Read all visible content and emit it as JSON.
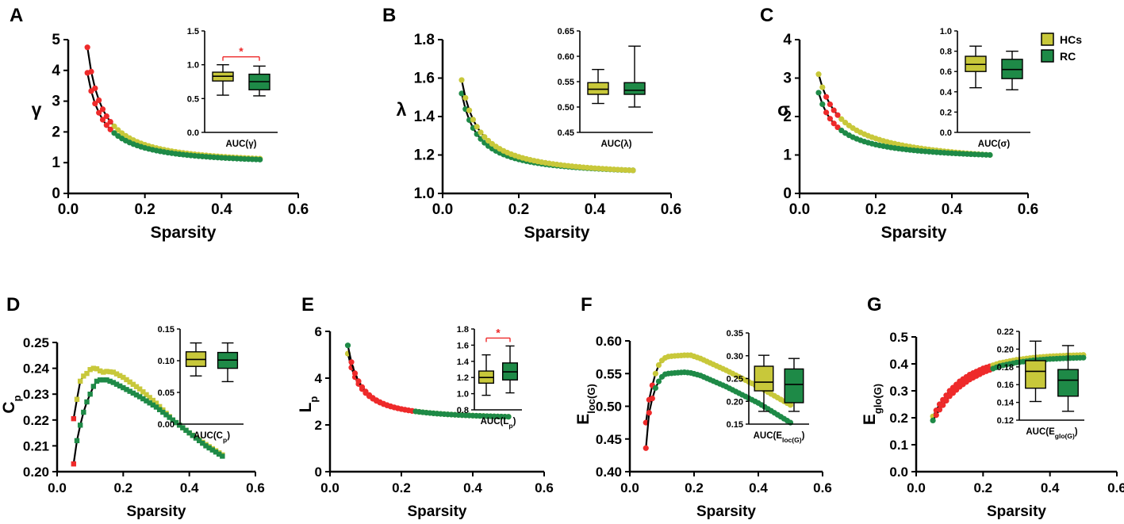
{
  "colors": {
    "hc": "#c8c83a",
    "rc": "#1e8a47",
    "sig": "#ee2a2a",
    "axis": "#000000",
    "line": "#000000"
  },
  "legend": {
    "hc_label": "HCs",
    "rc_label": "RC"
  },
  "chart_data": [
    {
      "id": "A",
      "panel_label": "A",
      "type": "scatter",
      "title": "",
      "xlabel": "Sparsity",
      "ylabel": "γ",
      "xlim": [
        0,
        0.6
      ],
      "ylim": [
        0,
        5
      ],
      "xticks": [
        0,
        0.2,
        0.4,
        0.6
      ],
      "xtick_labels": [
        "0.0",
        "0.2",
        "0.4",
        "0.6"
      ],
      "yticks": [
        0,
        1,
        2,
        3,
        4,
        5
      ],
      "ytick_labels": [
        "0",
        "1",
        "2",
        "3",
        "4",
        "5"
      ],
      "x": {
        "start": 0.05,
        "end": 0.5,
        "step": 0.01
      },
      "series": [
        {
          "name": "HCs",
          "start": 4.75,
          "end": 1.13,
          "shape": 1.27,
          "marker": "circle",
          "sig_range": [
            0.05,
            0.11
          ]
        },
        {
          "name": "RC",
          "start": 3.92,
          "end": 1.1,
          "shape": 1.2,
          "marker": "circle",
          "sig_range": [
            0.05,
            0.11
          ]
        }
      ],
      "inset": {
        "label": "AUC(γ)",
        "ylim": [
          0.0,
          1.5
        ],
        "yticks": [
          0.0,
          0.5,
          1.0,
          1.5
        ],
        "ytick_labels": [
          "0.0",
          "0.5",
          "1.0",
          "1.5"
        ],
        "boxes": [
          {
            "group": "HCs",
            "min": 0.55,
            "q1": 0.76,
            "median": 0.83,
            "q3": 0.89,
            "max": 1.0
          },
          {
            "group": "RC",
            "min": 0.54,
            "q1": 0.63,
            "median": 0.75,
            "q3": 0.86,
            "max": 0.98
          }
        ],
        "significance": "*"
      }
    },
    {
      "id": "B",
      "panel_label": "B",
      "type": "scatter",
      "title": "",
      "xlabel": "Sparsity",
      "ylabel": "λ",
      "xlim": [
        0,
        0.6
      ],
      "ylim": [
        1.0,
        1.8
      ],
      "xticks": [
        0,
        0.2,
        0.4,
        0.6
      ],
      "xtick_labels": [
        "0.0",
        "0.2",
        "0.4",
        "0.6"
      ],
      "yticks": [
        1.0,
        1.2,
        1.4,
        1.6,
        1.8
      ],
      "ytick_labels": [
        "1.0",
        "1.2",
        "1.4",
        "1.6",
        "1.8"
      ],
      "x": {
        "start": 0.05,
        "end": 0.5,
        "step": 0.01
      },
      "series": [
        {
          "name": "RC",
          "start": 1.52,
          "end": 1.12,
          "shape": 1.15,
          "marker": "circle",
          "sig_range": null
        },
        {
          "name": "HCs",
          "start": 1.59,
          "end": 1.12,
          "shape": 1.1,
          "marker": "circle",
          "sig_range": null
        }
      ],
      "inset": {
        "label": "AUC(λ)",
        "ylim": [
          0.45,
          0.65
        ],
        "yticks": [
          0.45,
          0.5,
          0.55,
          0.6,
          0.65
        ],
        "ytick_labels": [
          "0.45",
          "0.50",
          "0.55",
          "0.60",
          "0.65"
        ],
        "boxes": [
          {
            "group": "HCs",
            "min": 0.507,
            "q1": 0.525,
            "median": 0.535,
            "q3": 0.548,
            "max": 0.574
          },
          {
            "group": "RC",
            "min": 0.5,
            "q1": 0.525,
            "median": 0.533,
            "q3": 0.548,
            "max": 0.62
          }
        ],
        "significance": null
      }
    },
    {
      "id": "C",
      "panel_label": "C",
      "type": "scatter",
      "title": "",
      "xlabel": "Sparsity",
      "ylabel": "σ",
      "xlim": [
        0,
        0.6
      ],
      "ylim": [
        0,
        4
      ],
      "xticks": [
        0,
        0.2,
        0.4,
        0.6
      ],
      "xtick_labels": [
        "0.0",
        "0.2",
        "0.4",
        "0.6"
      ],
      "yticks": [
        0,
        1,
        2,
        3,
        4
      ],
      "ytick_labels": [
        "0",
        "1",
        "2",
        "3",
        "4"
      ],
      "x": {
        "start": 0.05,
        "end": 0.5,
        "step": 0.01
      },
      "series": [
        {
          "name": "HCs",
          "start": 3.1,
          "end": 1.0,
          "shape": 0.8,
          "marker": "circle",
          "sig_range": [
            0.07,
            0.1
          ]
        },
        {
          "name": "RC",
          "start": 2.62,
          "end": 1.0,
          "shape": 1.0,
          "marker": "circle",
          "sig_range": [
            0.07,
            0.1
          ]
        }
      ],
      "inset": {
        "label": "AUC(σ)",
        "ylim": [
          0.0,
          1.0
        ],
        "yticks": [
          0.0,
          0.2,
          0.4,
          0.6,
          0.8,
          1.0
        ],
        "ytick_labels": [
          "0.0",
          "0.2",
          "0.4",
          "0.6",
          "0.8",
          "1.0"
        ],
        "boxes": [
          {
            "group": "HCs",
            "min": 0.44,
            "q1": 0.6,
            "median": 0.67,
            "q3": 0.75,
            "max": 0.85
          },
          {
            "group": "RC",
            "min": 0.42,
            "q1": 0.53,
            "median": 0.62,
            "q3": 0.72,
            "max": 0.8
          }
        ],
        "significance": null
      }
    },
    {
      "id": "D",
      "panel_label": "D",
      "type": "scatter",
      "title": "",
      "xlabel": "Sparsity",
      "ylabel": "C",
      "ylabel_sub": "p",
      "xlim": [
        0,
        0.6
      ],
      "ylim": [
        0.2,
        0.25
      ],
      "xticks": [
        0,
        0.2,
        0.4,
        0.6
      ],
      "xtick_labels": [
        "0.0",
        "0.2",
        "0.4",
        "0.6"
      ],
      "yticks": [
        0.2,
        0.21,
        0.22,
        0.23,
        0.24,
        0.25
      ],
      "ytick_labels": [
        "0.20",
        "0.21",
        "0.22",
        "0.23",
        "0.24",
        "0.25"
      ],
      "x": {
        "start": 0.05,
        "end": 0.5,
        "step": 0.01
      },
      "series": [
        {
          "name": "HCs",
          "marker": "square",
          "sig_range": [
            0.05,
            0.05
          ],
          "key_x": [
            0.05,
            0.06,
            0.07,
            0.08,
            0.09,
            0.1,
            0.11,
            0.12,
            0.13,
            0.14,
            0.15,
            0.17,
            0.2,
            0.25,
            0.3,
            0.35,
            0.4,
            0.45,
            0.5
          ],
          "key_y": [
            0.2205,
            0.228,
            0.235,
            0.237,
            0.238,
            0.2395,
            0.24,
            0.2398,
            0.239,
            0.2385,
            0.2388,
            0.2385,
            0.2365,
            0.232,
            0.2265,
            0.22,
            0.215,
            0.2105,
            0.2065
          ]
        },
        {
          "name": "RC",
          "marker": "square",
          "sig_range": [
            0.05,
            0.05
          ],
          "key_x": [
            0.05,
            0.06,
            0.07,
            0.08,
            0.09,
            0.1,
            0.11,
            0.12,
            0.13,
            0.15,
            0.17,
            0.2,
            0.25,
            0.3,
            0.35,
            0.4,
            0.45,
            0.5
          ],
          "key_y": [
            0.203,
            0.212,
            0.218,
            0.223,
            0.227,
            0.23,
            0.233,
            0.235,
            0.2355,
            0.2355,
            0.2345,
            0.2325,
            0.229,
            0.225,
            0.22,
            0.215,
            0.21,
            0.206
          ]
        }
      ],
      "inset": {
        "label": "AUC(C",
        "label_sub": "p",
        "label_end": ")",
        "ylim": [
          0.0,
          0.15
        ],
        "yticks": [
          0.0,
          0.05,
          0.1,
          0.15
        ],
        "ytick_labels": [
          "0.00",
          "0.05",
          "0.10",
          "0.15"
        ],
        "boxes": [
          {
            "group": "HCs",
            "min": 0.076,
            "q1": 0.091,
            "median": 0.102,
            "q3": 0.114,
            "max": 0.128
          },
          {
            "group": "RC",
            "min": 0.067,
            "q1": 0.088,
            "median": 0.101,
            "q3": 0.113,
            "max": 0.128
          }
        ],
        "significance": null
      }
    },
    {
      "id": "E",
      "panel_label": "E",
      "type": "scatter",
      "title": "",
      "xlabel": "Sparsity",
      "ylabel": "L",
      "ylabel_sub": "p",
      "xlim": [
        0,
        0.6
      ],
      "ylim": [
        0,
        6
      ],
      "xticks": [
        0,
        0.2,
        0.4,
        0.6
      ],
      "xtick_labels": [
        "0.0",
        "0.2",
        "0.4",
        "0.6"
      ],
      "yticks": [
        0,
        2,
        4,
        6
      ],
      "ytick_labels": [
        "0",
        "2",
        "4",
        "6"
      ],
      "x": {
        "start": 0.05,
        "end": 0.5,
        "step": 0.01
      },
      "series": [
        {
          "name": "HCs",
          "start": 5.05,
          "end": 2.35,
          "shape": 1.3,
          "marker": "circle",
          "sig_range": [
            0.06,
            0.23
          ]
        },
        {
          "name": "RC",
          "start": 5.4,
          "end": 2.35,
          "shape": 1.4,
          "marker": "circle",
          "sig_range": [
            0.06,
            0.23
          ]
        }
      ],
      "inset": {
        "label": "AUC(L",
        "label_sub": "p",
        "label_end": ")",
        "ylim": [
          0.8,
          1.8
        ],
        "yticks": [
          0.8,
          1.0,
          1.2,
          1.4,
          1.6,
          1.8
        ],
        "ytick_labels": [
          "0.8",
          "1.0",
          "1.2",
          "1.4",
          "1.6",
          "1.8"
        ],
        "boxes": [
          {
            "group": "HCs",
            "min": 0.98,
            "q1": 1.13,
            "median": 1.2,
            "q3": 1.28,
            "max": 1.48
          },
          {
            "group": "RC",
            "min": 1.01,
            "q1": 1.17,
            "median": 1.27,
            "q3": 1.38,
            "max": 1.59
          }
        ],
        "significance": "*"
      }
    },
    {
      "id": "F",
      "panel_label": "F",
      "type": "scatter",
      "title": "",
      "xlabel": "Sparsity",
      "ylabel": "E",
      "ylabel_sub": "loc(G)",
      "xlim": [
        0,
        0.6
      ],
      "ylim": [
        0.4,
        0.6
      ],
      "xticks": [
        0,
        0.2,
        0.4,
        0.6
      ],
      "xtick_labels": [
        "0.0",
        "0.2",
        "0.4",
        "0.6"
      ],
      "yticks": [
        0.4,
        0.45,
        0.5,
        0.55,
        0.6
      ],
      "ytick_labels": [
        "0.40",
        "0.45",
        "0.50",
        "0.55",
        "0.60"
      ],
      "x": {
        "start": 0.05,
        "end": 0.5,
        "step": 0.01
      },
      "series": [
        {
          "name": "HCs",
          "marker": "circle",
          "sig_range": [
            0.05,
            0.07
          ],
          "key_x": [
            0.05,
            0.06,
            0.07,
            0.08,
            0.09,
            0.1,
            0.11,
            0.12,
            0.14,
            0.17,
            0.19,
            0.22,
            0.3,
            0.4,
            0.5
          ],
          "key_y": [
            0.475,
            0.51,
            0.532,
            0.55,
            0.563,
            0.57,
            0.574,
            0.576,
            0.577,
            0.578,
            0.578,
            0.573,
            0.555,
            0.53,
            0.502
          ]
        },
        {
          "name": "RC",
          "marker": "circle",
          "sig_range": [
            0.05,
            0.07
          ],
          "key_x": [
            0.05,
            0.06,
            0.07,
            0.08,
            0.09,
            0.1,
            0.11,
            0.12,
            0.14,
            0.17,
            0.19,
            0.22,
            0.3,
            0.4,
            0.5
          ],
          "key_y": [
            0.436,
            0.49,
            0.512,
            0.528,
            0.538,
            0.545,
            0.549,
            0.55,
            0.551,
            0.552,
            0.551,
            0.547,
            0.53,
            0.505,
            0.475
          ]
        }
      ],
      "inset": {
        "label": "AUC(E",
        "label_sub": "loc(G)",
        "label_end": ")",
        "ylim": [
          0.15,
          0.35
        ],
        "yticks": [
          0.15,
          0.2,
          0.25,
          0.3,
          0.35
        ],
        "ytick_labels": [
          "0.15",
          "0.20",
          "0.25",
          "0.30",
          "0.35"
        ],
        "boxes": [
          {
            "group": "HCs",
            "min": 0.178,
            "q1": 0.223,
            "median": 0.242,
            "q3": 0.277,
            "max": 0.301
          },
          {
            "group": "RC",
            "min": 0.178,
            "q1": 0.197,
            "median": 0.237,
            "q3": 0.271,
            "max": 0.294
          }
        ],
        "significance": null
      }
    },
    {
      "id": "G",
      "panel_label": "G",
      "type": "scatter",
      "title": "",
      "xlabel": "Sparsity",
      "ylabel": "E",
      "ylabel_sub": "glo(G)",
      "xlim": [
        0,
        0.6
      ],
      "ylim": [
        0,
        0.5
      ],
      "xticks": [
        0,
        0.2,
        0.4,
        0.6
      ],
      "xtick_labels": [
        "0.0",
        "0.2",
        "0.4",
        "0.6"
      ],
      "yticks": [
        0,
        0.1,
        0.2,
        0.3,
        0.4,
        0.5
      ],
      "ytick_labels": [
        "0.0",
        "0.1",
        "0.2",
        "0.3",
        "0.4",
        "0.5"
      ],
      "x": {
        "start": 0.05,
        "end": 0.5,
        "step": 0.01
      },
      "series": [
        {
          "name": "HCs",
          "marker": "circle",
          "sig_range": [
            0.06,
            0.22
          ],
          "key_x": [
            0.05,
            0.07,
            0.1,
            0.13,
            0.16,
            0.2,
            0.25,
            0.3,
            0.35,
            0.4,
            0.45,
            0.5
          ],
          "key_y": [
            0.205,
            0.25,
            0.3,
            0.335,
            0.36,
            0.383,
            0.403,
            0.415,
            0.423,
            0.428,
            0.431,
            0.433
          ]
        },
        {
          "name": "RC",
          "marker": "circle",
          "sig_range": [
            0.06,
            0.22
          ],
          "key_x": [
            0.05,
            0.07,
            0.1,
            0.13,
            0.16,
            0.2,
            0.25,
            0.3,
            0.35,
            0.4,
            0.45,
            0.5
          ],
          "key_y": [
            0.19,
            0.23,
            0.28,
            0.315,
            0.342,
            0.368,
            0.392,
            0.405,
            0.413,
            0.418,
            0.421,
            0.423
          ]
        }
      ],
      "inset": {
        "label": "AUC(E",
        "label_sub": "glo(G)",
        "label_end": ")",
        "ylim": [
          0.12,
          0.22
        ],
        "yticks": [
          0.12,
          0.14,
          0.16,
          0.18,
          0.2,
          0.22
        ],
        "ytick_labels": [
          "0.12",
          "0.14",
          "0.16",
          "0.18",
          "0.20",
          "0.22"
        ],
        "boxes": [
          {
            "group": "HCs",
            "min": 0.141,
            "q1": 0.156,
            "median": 0.175,
            "q3": 0.187,
            "max": 0.209
          },
          {
            "group": "RC",
            "min": 0.13,
            "q1": 0.147,
            "median": 0.165,
            "q3": 0.177,
            "max": 0.204
          }
        ],
        "significance": null
      }
    }
  ]
}
